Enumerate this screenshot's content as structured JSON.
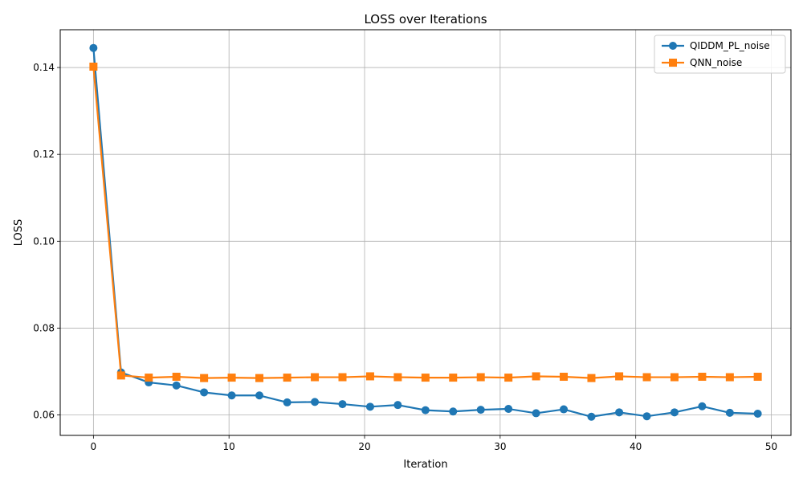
{
  "chart_data": {
    "type": "line",
    "title": "LOSS over Iterations",
    "xlabel": "Iteration",
    "ylabel": "LOSS",
    "xlim": [
      -2.45,
      51.45
    ],
    "ylim": [
      0.0553,
      0.1487
    ],
    "xticks": [
      0,
      10,
      20,
      30,
      40,
      50
    ],
    "yticks": [
      0.06,
      0.08,
      0.1,
      0.12,
      0.14
    ],
    "ytick_labels": [
      "0.06",
      "0.08",
      "0.10",
      "0.12",
      "0.14"
    ],
    "grid": true,
    "legend_position": "top-right",
    "x": [
      0,
      2.04,
      4.08,
      6.12,
      8.16,
      10.2,
      12.24,
      14.29,
      16.33,
      18.37,
      20.41,
      22.45,
      24.49,
      26.53,
      28.57,
      30.61,
      32.65,
      34.69,
      36.73,
      38.78,
      40.82,
      42.86,
      44.9,
      46.94,
      49.0
    ],
    "series": [
      {
        "name": "QIDDM_PL_noise",
        "color": "#1f77b4",
        "marker": "circle",
        "values": [
          0.1445,
          0.0698,
          0.0675,
          0.0668,
          0.0652,
          0.0645,
          0.0645,
          0.0629,
          0.063,
          0.0625,
          0.0619,
          0.0623,
          0.0611,
          0.0608,
          0.0612,
          0.0614,
          0.0604,
          0.0613,
          0.0596,
          0.0606,
          0.0597,
          0.0606,
          0.062,
          0.0605,
          0.0603
        ]
      },
      {
        "name": "QNN_noise",
        "color": "#ff7f0e",
        "marker": "square",
        "values": [
          0.1402,
          0.0691,
          0.0686,
          0.0688,
          0.0685,
          0.0686,
          0.0685,
          0.0686,
          0.0687,
          0.0687,
          0.0689,
          0.0687,
          0.0686,
          0.0686,
          0.0687,
          0.0686,
          0.0689,
          0.0688,
          0.0685,
          0.0689,
          0.0687,
          0.0687,
          0.0688,
          0.0687,
          0.0688
        ]
      }
    ]
  }
}
